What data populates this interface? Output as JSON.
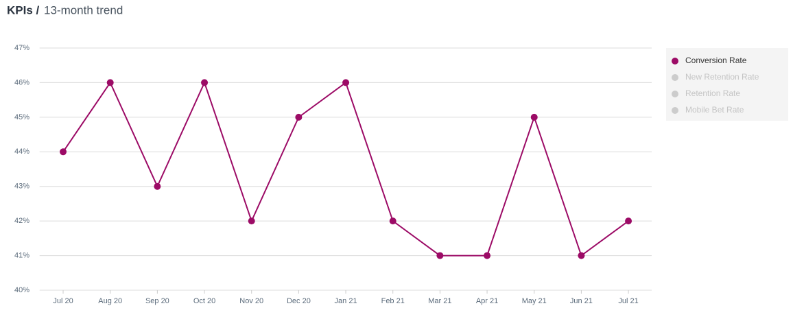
{
  "chart_data": {
    "type": "line",
    "title": "KPIs /",
    "subtitle": "13-month trend",
    "categories": [
      "Jul 20",
      "Aug 20",
      "Sep 20",
      "Oct 20",
      "Nov 20",
      "Dec 20",
      "Jan 21",
      "Feb 21",
      "Mar 21",
      "Apr 21",
      "May 21",
      "Jun 21",
      "Jul 21"
    ],
    "series": [
      {
        "name": "Conversion Rate",
        "color": "#9c0b66",
        "values": [
          44,
          46,
          43,
          46,
          42,
          45,
          46,
          42,
          41,
          41,
          45,
          41,
          42
        ]
      }
    ],
    "inactive_series": [
      "New Retention Rate",
      "Retention Rate",
      "Mobile Bet Rate"
    ],
    "ylim": [
      40,
      47
    ],
    "yticks": [
      {
        "value": 40,
        "label": "40%"
      },
      {
        "value": 41,
        "label": "41%"
      },
      {
        "value": 42,
        "label": "42%"
      },
      {
        "value": 43,
        "label": "43%"
      },
      {
        "value": 44,
        "label": "44%"
      },
      {
        "value": 45,
        "label": "45%"
      },
      {
        "value": 46,
        "label": "46%"
      },
      {
        "value": 47,
        "label": "47%"
      }
    ],
    "grid": true,
    "legend": "right"
  }
}
